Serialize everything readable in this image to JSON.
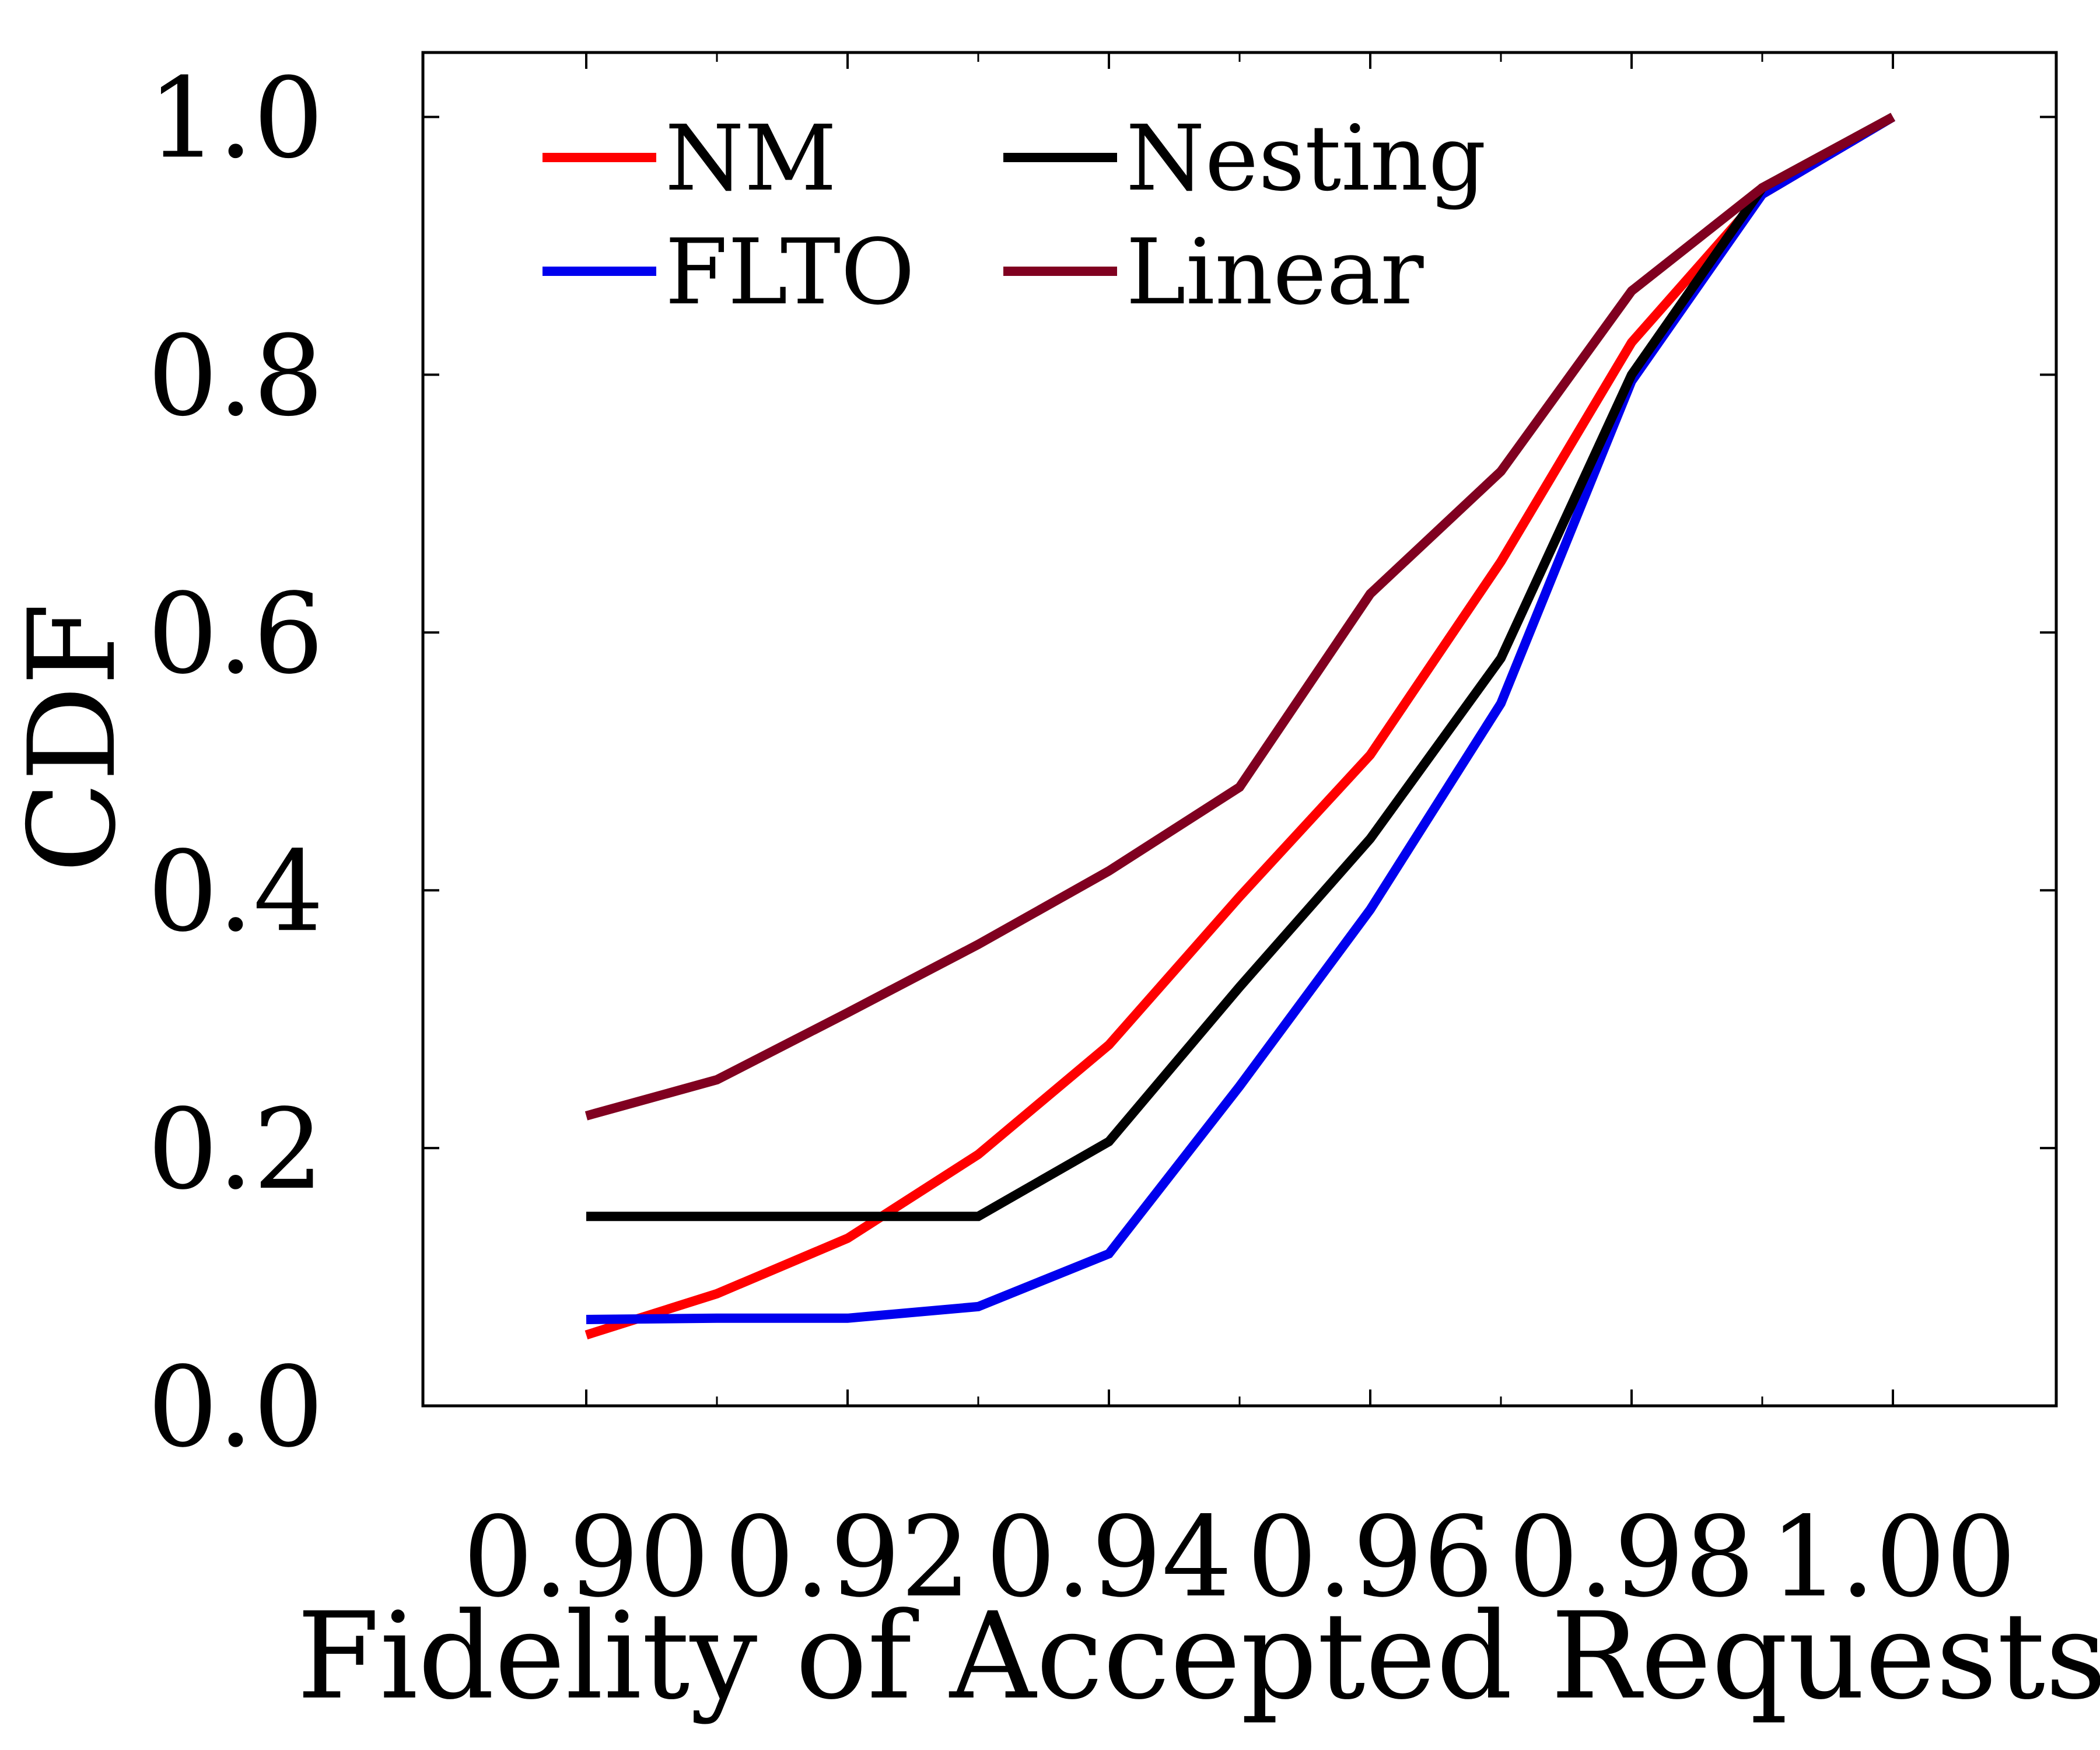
{
  "chart_data": {
    "type": "line",
    "title": "",
    "xlabel": "Fidelity of Accepted Requests",
    "ylabel": "CDF",
    "xlim": [
      0.8875,
      1.0125
    ],
    "ylim": [
      0.0,
      1.05
    ],
    "xticks": [
      0.9,
      0.92,
      0.94,
      0.96,
      0.98,
      1.0
    ],
    "xtick_labels": [
      "0.90",
      "0.92",
      "0.94",
      "0.96",
      "0.98",
      "1.00"
    ],
    "xticks_minor": [
      0.91,
      0.93,
      0.95,
      0.97,
      0.99
    ],
    "yticks": [
      0.0,
      0.2,
      0.4,
      0.6,
      0.8,
      1.0
    ],
    "ytick_labels": [
      "0.0",
      "0.2",
      "0.4",
      "0.6",
      "0.8",
      "1.0"
    ],
    "grid": false,
    "legend": "upper-left",
    "x": [
      0.9,
      0.91,
      0.92,
      0.93,
      0.94,
      0.95,
      0.96,
      0.97,
      0.98,
      0.99,
      1.0
    ],
    "series": [
      {
        "name": "NM",
        "color": "#ff0000",
        "values": [
          0.055,
          0.087,
          0.13,
          0.195,
          0.28,
          0.395,
          0.505,
          0.655,
          0.825,
          0.94,
          1.0
        ]
      },
      {
        "name": "FLTO",
        "color": "#0000ee",
        "values": [
          0.067,
          0.068,
          0.068,
          0.077,
          0.118,
          0.248,
          0.385,
          0.545,
          0.795,
          0.94,
          1.0
        ]
      },
      {
        "name": "Nesting",
        "color": "#000000",
        "values": [
          0.147,
          0.147,
          0.147,
          0.147,
          0.205,
          0.325,
          0.44,
          0.58,
          0.8,
          0.945,
          1.0
        ]
      },
      {
        "name": "Linear",
        "color": "#800020",
        "values": [
          0.225,
          0.253,
          0.305,
          0.358,
          0.415,
          0.48,
          0.63,
          0.725,
          0.865,
          0.945,
          1.0
        ]
      }
    ]
  }
}
